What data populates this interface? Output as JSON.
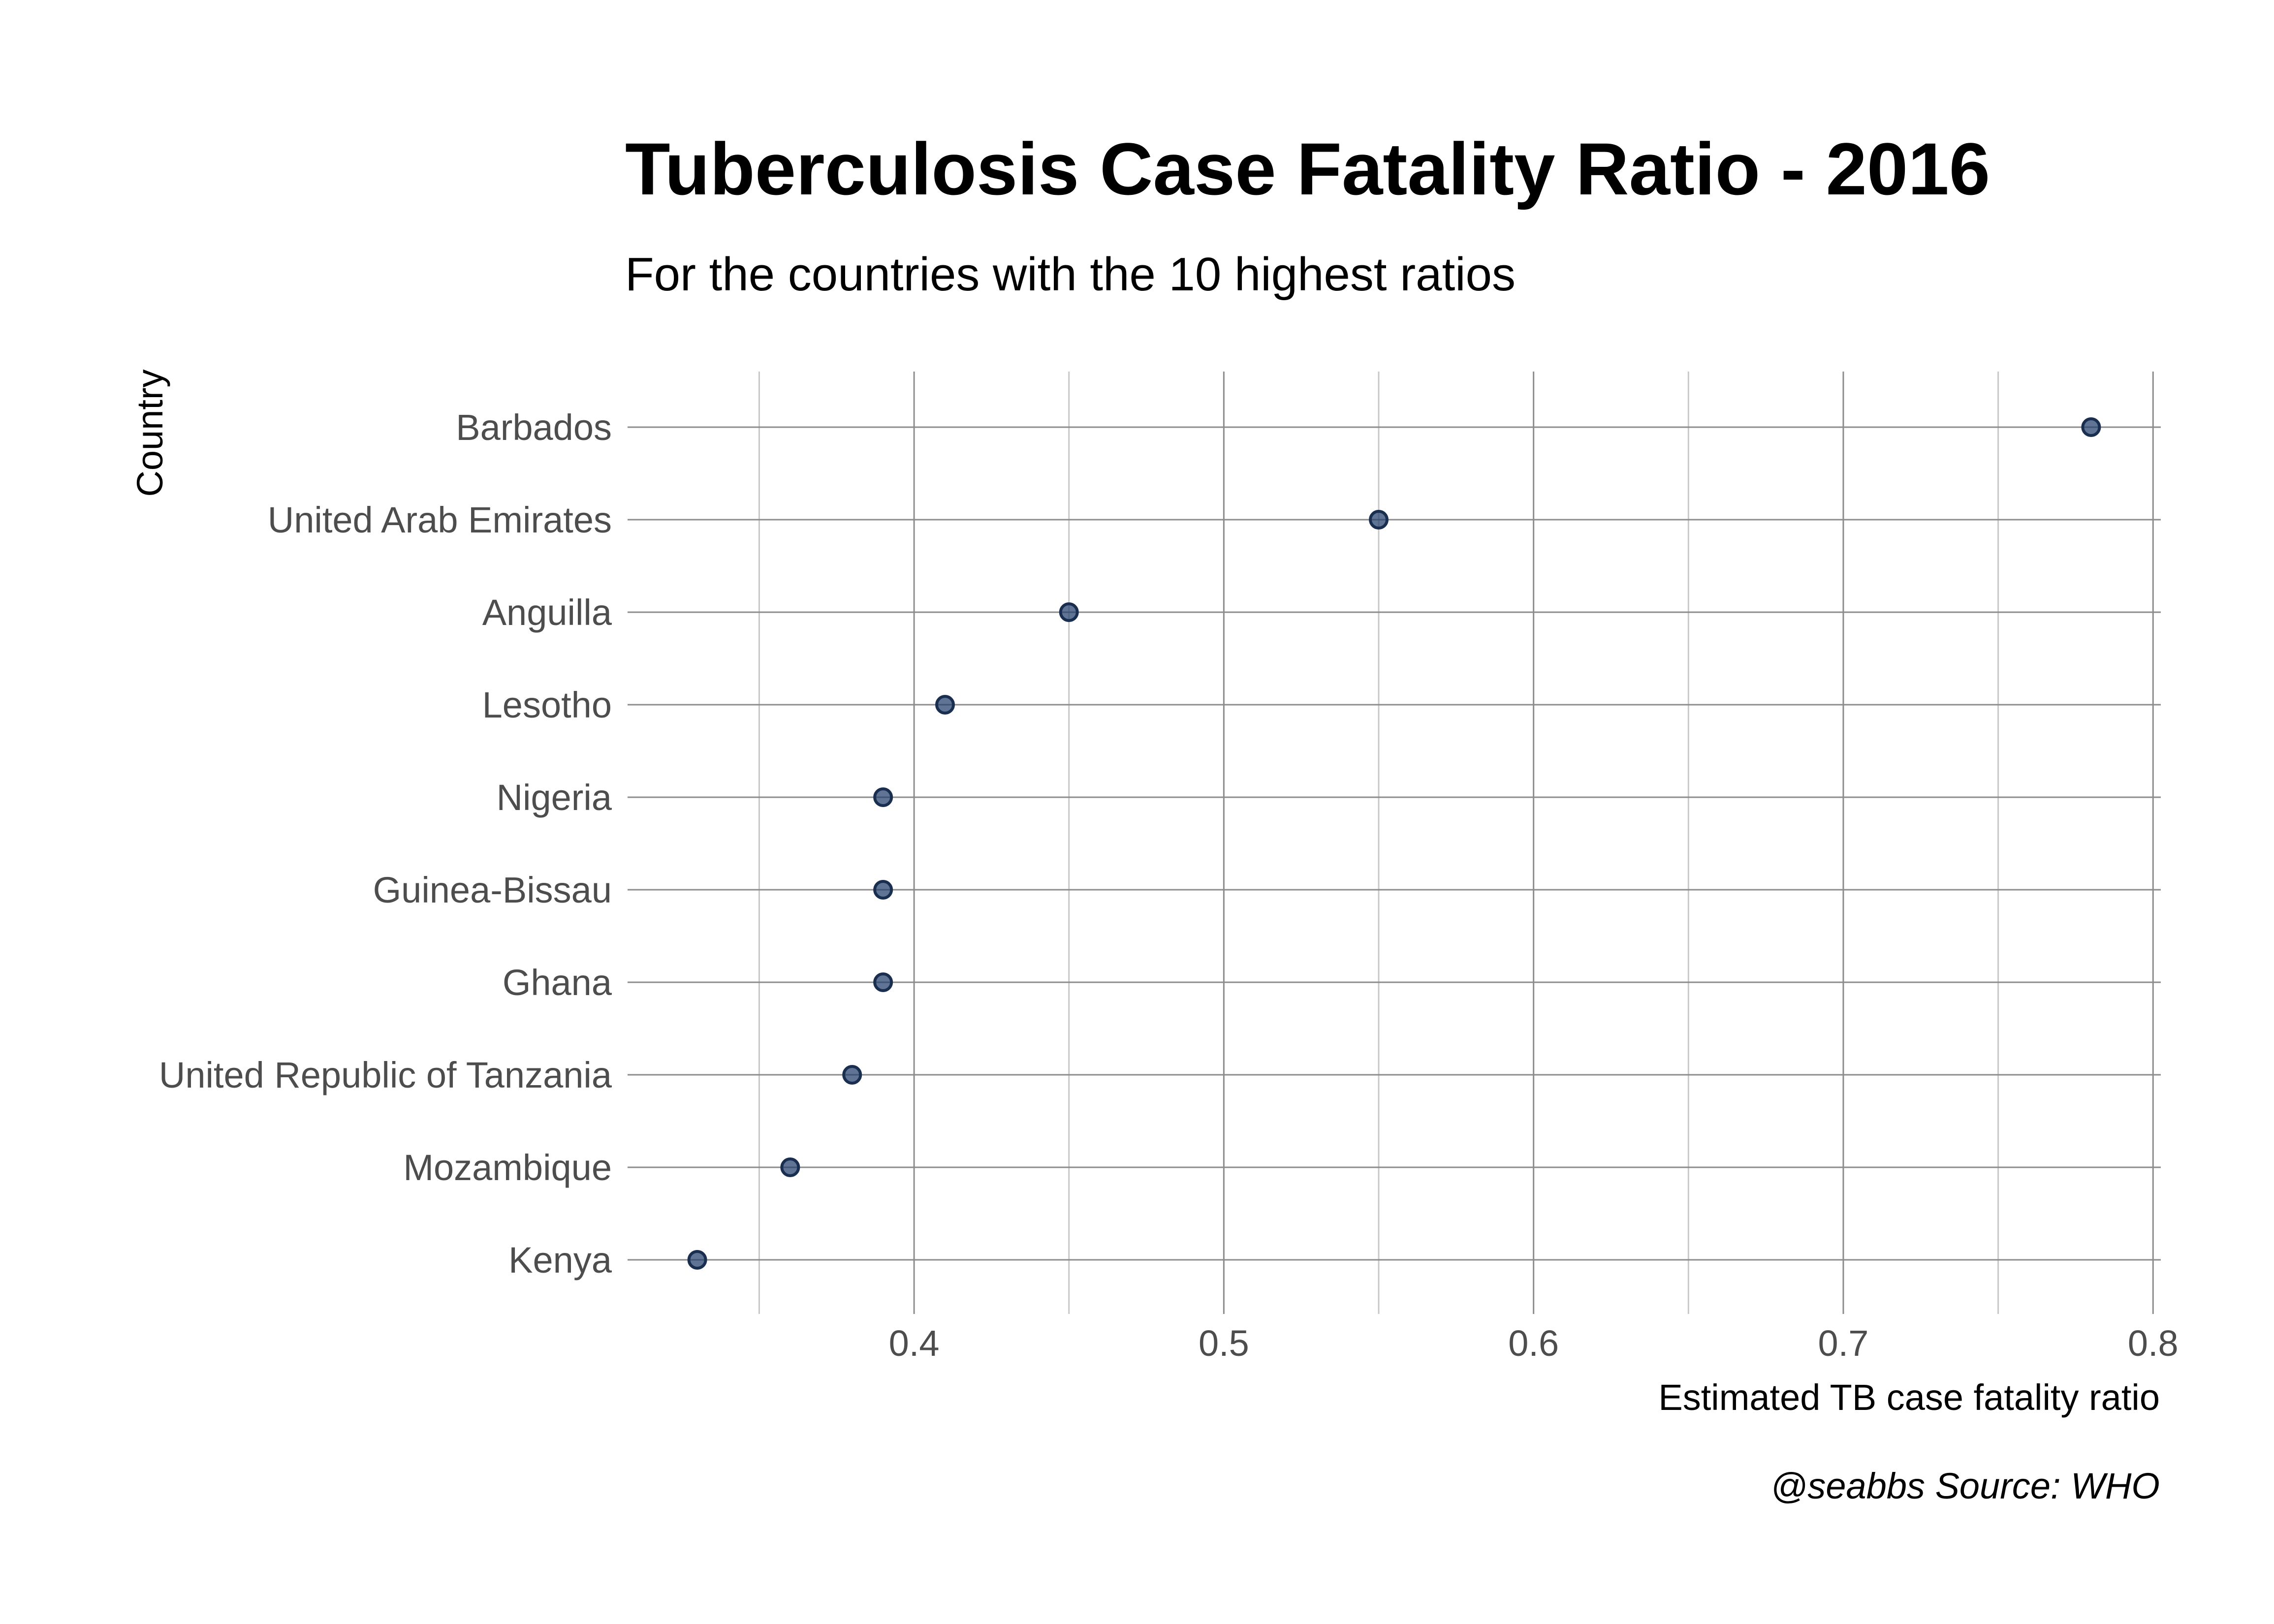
{
  "chart_data": {
    "type": "scatter",
    "title": "Tuberculosis Case Fatality Ratio - 2016",
    "subtitle": "For the countries with the 10 highest ratios",
    "xlabel": "Estimated TB case fatality ratio",
    "ylabel": "Country",
    "caption": "@seabbs Source: WHO",
    "categories": [
      "Barbados",
      "United Arab Emirates",
      "Anguilla",
      "Lesotho",
      "Nigeria",
      "Guinea-Bissau",
      "Ghana",
      "United Republic of Tanzania",
      "Mozambique",
      "Kenya"
    ],
    "values": [
      0.78,
      0.55,
      0.45,
      0.41,
      0.39,
      0.39,
      0.39,
      0.38,
      0.36,
      0.33
    ],
    "xlim": [
      0.3075,
      0.8025
    ],
    "xticks": [
      "0.4",
      "0.5",
      "0.6",
      "0.7",
      "0.8"
    ],
    "grid": true,
    "legend": "none",
    "point_color": "#23406e",
    "point_stroke": "#1a2e50"
  }
}
